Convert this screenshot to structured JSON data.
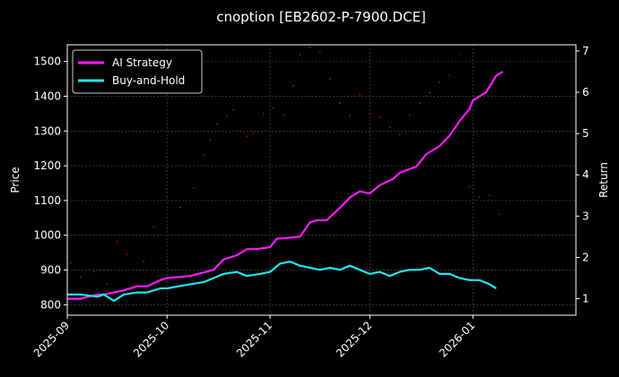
{
  "chart_data": {
    "type": "line",
    "title": "cnoption [EB2602-P-7900.DCE]",
    "ylabel": "Price",
    "y2label": "Return",
    "background": "#000000",
    "grid": true,
    "legend_position": "upper-left",
    "xlim": [
      "2025-09-01",
      "2026-02-01"
    ],
    "ylim": [
      770,
      1548
    ],
    "y2lim": [
      0.6,
      7.15
    ],
    "x_ticks": [
      "2025-09-01",
      "2025-10-01",
      "2025-11-01",
      "2025-12-01",
      "2026-01-01"
    ],
    "x_tick_labels": [
      "2025-09",
      "2025-10",
      "2025-11",
      "2025-12",
      "2026-01"
    ],
    "y_ticks": [
      800,
      900,
      1000,
      1100,
      1200,
      1300,
      1400,
      1500
    ],
    "y2_ticks": [
      1,
      2,
      3,
      4,
      5,
      6,
      7
    ],
    "series": [
      {
        "name": "AI Strategy",
        "axis": "right",
        "color": "#ff1aff",
        "dates": [
          "2025-09-01",
          "2025-09-05",
          "2025-09-10",
          "2025-09-12",
          "2025-09-15",
          "2025-09-18",
          "2025-09-22",
          "2025-09-25",
          "2025-09-29",
          "2025-10-01",
          "2025-10-08",
          "2025-10-15",
          "2025-10-18",
          "2025-10-22",
          "2025-10-25",
          "2025-10-28",
          "2025-11-01",
          "2025-11-03",
          "2025-11-10",
          "2025-11-13",
          "2025-11-15",
          "2025-11-18",
          "2025-11-22",
          "2025-11-25",
          "2025-11-28",
          "2025-12-01",
          "2025-12-04",
          "2025-12-08",
          "2025-12-10",
          "2025-12-15",
          "2025-12-18",
          "2025-12-22",
          "2025-12-25",
          "2025-12-28",
          "2025-12-31",
          "2026-01-01",
          "2026-01-05",
          "2026-01-08",
          "2026-01-10"
        ],
        "values": [
          1.0,
          1.0,
          1.1,
          1.1,
          1.15,
          1.2,
          1.3,
          1.3,
          1.45,
          1.5,
          1.55,
          1.7,
          1.95,
          2.05,
          2.2,
          2.2,
          2.25,
          2.45,
          2.5,
          2.85,
          2.9,
          2.9,
          3.2,
          3.45,
          3.6,
          3.55,
          3.75,
          3.9,
          4.05,
          4.2,
          4.5,
          4.7,
          4.95,
          5.3,
          5.6,
          5.8,
          6.0,
          6.4,
          6.5
        ]
      },
      {
        "name": "Buy-and-Hold",
        "axis": "right",
        "color": "#22e5ee",
        "dates": [
          "2025-09-01",
          "2025-09-05",
          "2025-09-10",
          "2025-09-12",
          "2025-09-15",
          "2025-09-18",
          "2025-09-22",
          "2025-09-25",
          "2025-09-29",
          "2025-10-01",
          "2025-10-08",
          "2025-10-12",
          "2025-10-15",
          "2025-10-18",
          "2025-10-22",
          "2025-10-25",
          "2025-10-29",
          "2025-11-01",
          "2025-11-04",
          "2025-11-07",
          "2025-11-10",
          "2025-11-13",
          "2025-11-16",
          "2025-11-19",
          "2025-11-22",
          "2025-11-25",
          "2025-11-28",
          "2025-12-01",
          "2025-12-04",
          "2025-12-07",
          "2025-12-10",
          "2025-12-13",
          "2025-12-16",
          "2025-12-19",
          "2025-12-22",
          "2025-12-25",
          "2025-12-28",
          "2025-12-31",
          "2026-01-03",
          "2026-01-06",
          "2026-01-08"
        ],
        "values": [
          1.1,
          1.1,
          1.05,
          1.1,
          0.95,
          1.1,
          1.15,
          1.15,
          1.25,
          1.25,
          1.35,
          1.4,
          1.5,
          1.6,
          1.65,
          1.55,
          1.6,
          1.65,
          1.85,
          1.9,
          1.8,
          1.75,
          1.7,
          1.75,
          1.7,
          1.8,
          1.7,
          1.6,
          1.65,
          1.55,
          1.65,
          1.7,
          1.7,
          1.75,
          1.6,
          1.6,
          1.5,
          1.45,
          1.45,
          1.35,
          1.25
        ]
      },
      {
        "name": "Price",
        "axis": "left",
        "color": "#cc0000",
        "style": "scatter-dots",
        "dates": [
          "2025-09-02",
          "2025-09-05",
          "2025-09-09",
          "2025-09-13",
          "2025-09-16",
          "2025-09-19",
          "2025-09-24",
          "2025-09-27",
          "2025-10-01",
          "2025-10-05",
          "2025-10-09",
          "2025-10-12",
          "2025-10-14",
          "2025-10-16",
          "2025-10-19",
          "2025-10-21",
          "2025-10-23",
          "2025-10-25",
          "2025-10-27",
          "2025-10-30",
          "2025-11-02",
          "2025-11-05",
          "2025-11-08",
          "2025-11-10",
          "2025-11-13",
          "2025-11-16",
          "2025-11-19",
          "2025-11-22",
          "2025-11-25",
          "2025-11-28",
          "2025-12-01",
          "2025-12-04",
          "2025-12-07",
          "2025-12-10",
          "2025-12-13",
          "2025-12-16",
          "2025-12-19",
          "2025-12-22",
          "2025-12-25",
          "2025-12-28",
          "2025-12-31",
          "2026-01-03",
          "2026-01-06",
          "2026-01-09"
        ],
        "values": [
          920,
          880,
          895,
          860,
          980,
          945,
          925,
          1025,
          1110,
          1080,
          1135,
          1230,
          1275,
          1320,
          1345,
          1360,
          1300,
          1285,
          1295,
          1350,
          1365,
          1345,
          1430,
          1520,
          1540,
          1525,
          1450,
          1380,
          1345,
          1405,
          1350,
          1340,
          1310,
          1290,
          1345,
          1380,
          1410,
          1440,
          1460,
          1520,
          1140,
          1110,
          1115,
          1060
        ]
      }
    ]
  }
}
